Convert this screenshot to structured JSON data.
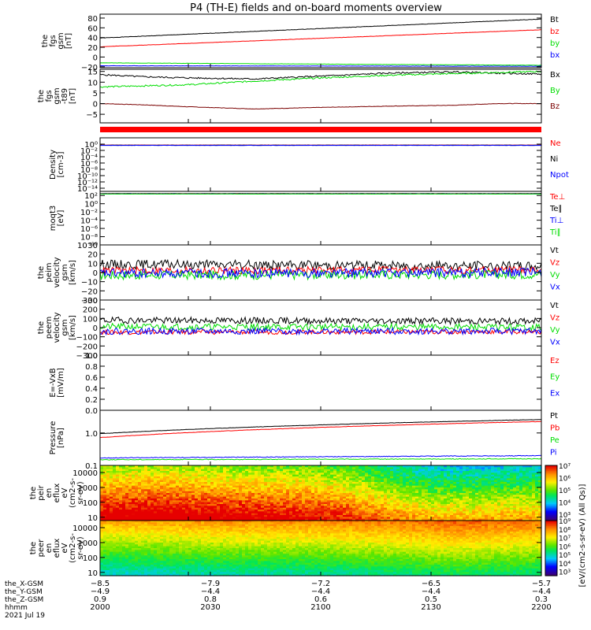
{
  "title": "P4 (TH-E) fields and on-board moments overview",
  "colors": {
    "black": "#000000",
    "red": "#ff0000",
    "green": "#00dd00",
    "blue": "#0000ff"
  },
  "chart_data": [
    {
      "type": "line",
      "ylabel_lines": [
        "the",
        "fgs",
        "gsm",
        "[nT]"
      ],
      "ylim": [
        -22,
        88
      ],
      "yticks": [
        {
          "v": 80,
          "label": "80"
        },
        {
          "v": 60,
          "label": "60"
        },
        {
          "v": 40,
          "label": "40"
        },
        {
          "v": 20,
          "label": "20"
        },
        {
          "v": 0,
          "label": "0"
        },
        {
          "v": -20,
          "label": "−20"
        }
      ],
      "series": [
        {
          "name": "Bt",
          "color": "#000000",
          "start": 39,
          "end": 78,
          "noise": 0.4,
          "seed": 1
        },
        {
          "name": "bz",
          "color": "#ff0000",
          "start": 21,
          "end": 56,
          "noise": 0.3,
          "seed": 2
        },
        {
          "name": "by",
          "color": "#00dd00",
          "start": -12,
          "end": -17,
          "noise": 0.3,
          "seed": 3
        },
        {
          "name": "bx",
          "color": "#0000ff",
          "start": -18,
          "end": -19,
          "noise": 0.3,
          "seed": 4
        }
      ]
    },
    {
      "type": "line",
      "ylabel_lines": [
        "the",
        "fgs",
        "gsm",
        "-t89",
        "[nT]"
      ],
      "ylim": [
        -9,
        16
      ],
      "yticks": [
        {
          "v": 15,
          "label": "15"
        },
        {
          "v": 10,
          "label": "10"
        },
        {
          "v": 5,
          "label": "5"
        },
        {
          "v": 0,
          "label": "0"
        },
        {
          "v": -5,
          "label": "−5"
        }
      ],
      "series": [
        {
          "name": "Bx",
          "color": "#000000",
          "points": [
            [
              0,
              13.5
            ],
            [
              0.1,
              12.5
            ],
            [
              0.2,
              12
            ],
            [
              0.35,
              11.5
            ],
            [
              0.5,
              12.8
            ],
            [
              0.65,
              14.2
            ],
            [
              0.8,
              14.8
            ],
            [
              0.9,
              14.2
            ],
            [
              1,
              13.8
            ]
          ],
          "noise": 0.35,
          "seed": 5
        },
        {
          "name": "By",
          "color": "#00dd00",
          "points": [
            [
              0,
              7.8
            ],
            [
              0.1,
              8.3
            ],
            [
              0.2,
              8.8
            ],
            [
              0.35,
              10.5
            ],
            [
              0.5,
              12
            ],
            [
              0.65,
              13.2
            ],
            [
              0.8,
              14
            ],
            [
              0.9,
              14.5
            ],
            [
              1,
              15
            ]
          ],
          "noise": 0.35,
          "seed": 6
        },
        {
          "name": "Bz",
          "color": "#7a0000",
          "points": [
            [
              0,
              0
            ],
            [
              0.1,
              -0.6
            ],
            [
              0.2,
              -1.5
            ],
            [
              0.35,
              -2.5
            ],
            [
              0.5,
              -1.8
            ],
            [
              0.65,
              -1.2
            ],
            [
              0.8,
              -0.8
            ],
            [
              0.9,
              0
            ],
            [
              1,
              0
            ]
          ],
          "noise": 0.1,
          "seed": 7
        }
      ]
    },
    {
      "type": "line",
      "ylabel_lines": [
        "Density",
        "[cm-3]"
      ],
      "log": true,
      "ylim": [
        1e-15,
        100.0
      ],
      "yticks": [
        {
          "v": 1.0,
          "label": "10⁰"
        },
        {
          "v": 0.01,
          "label": "10⁻²"
        },
        {
          "v": 0.0001,
          "label": "10⁻⁴"
        },
        {
          "v": 1e-06,
          "label": "10⁻⁶"
        },
        {
          "v": 1e-08,
          "label": "10⁻⁸"
        },
        {
          "v": 1e-10,
          "label": "10⁻¹⁰"
        },
        {
          "v": 1e-12,
          "label": "10⁻¹²"
        },
        {
          "v": 1e-14,
          "label": "10⁻¹⁴"
        }
      ],
      "series": [
        {
          "name": "Ne",
          "color": "#ff0000",
          "start": 0.5,
          "end": 0.5,
          "noise": 0.05,
          "seed": 8
        },
        {
          "name": "Ni",
          "color": "#000000",
          "start": 0.45,
          "end": 0.45,
          "noise": 0.05,
          "seed": 9
        },
        {
          "name": "Npot",
          "color": "#0000ff",
          "start": 0.4,
          "end": 0.4,
          "noise": 0.05,
          "seed": 10
        }
      ]
    },
    {
      "type": "line",
      "ylabel_lines": [
        "moqt3",
        "[eV]"
      ],
      "log": true,
      "ylim": [
        1e-10,
        1000.0
      ],
      "yticks": [
        {
          "v": 100.0,
          "label": "10²"
        },
        {
          "v": 1.0,
          "label": "10⁰"
        },
        {
          "v": 0.01,
          "label": "10⁻²"
        },
        {
          "v": 0.0001,
          "label": "10⁻⁴"
        },
        {
          "v": 1e-06,
          "label": "10⁻⁶"
        },
        {
          "v": 1e-08,
          "label": "10⁻⁸"
        },
        {
          "v": 1e-10,
          "label": "10⁻¹⁰"
        }
      ],
      "series": [
        {
          "name": "Te⊥",
          "color": "#ff0000",
          "start": 300,
          "end": 300,
          "noise": 0.05,
          "seed": 11
        },
        {
          "name": "Te∥",
          "color": "#000000",
          "start": 280,
          "end": 280,
          "noise": 0.05,
          "seed": 12
        },
        {
          "name": "Ti⊥",
          "color": "#0000ff",
          "start": 250,
          "end": 250,
          "noise": 0.05,
          "seed": 13
        },
        {
          "name": "Ti∥",
          "color": "#00dd00",
          "start": 230,
          "end": 230,
          "noise": 0.05,
          "seed": 14
        }
      ]
    },
    {
      "type": "line",
      "ylabel_lines": [
        "the",
        "peim",
        "velocity",
        "gsm",
        "[km/s]"
      ],
      "ylim": [
        -30,
        30
      ],
      "yticks": [
        {
          "v": 30,
          "label": "30"
        },
        {
          "v": 20,
          "label": "20"
        },
        {
          "v": 10,
          "label": "10"
        },
        {
          "v": 0,
          "label": "0"
        },
        {
          "v": -10,
          "label": "−10"
        },
        {
          "v": -20,
          "label": "−20"
        },
        {
          "v": -30,
          "label": "−30"
        }
      ],
      "series": [
        {
          "name": "Vt",
          "color": "#000000",
          "start": 9,
          "end": 7,
          "noise": 5,
          "seed": 15
        },
        {
          "name": "Vz",
          "color": "#ff0000",
          "start": 2,
          "end": 3,
          "noise": 4,
          "seed": 16
        },
        {
          "name": "Vy",
          "color": "#00dd00",
          "start": -3,
          "end": -2,
          "noise": 5,
          "seed": 17
        },
        {
          "name": "Vx",
          "color": "#0000ff",
          "start": -1,
          "end": 0,
          "noise": 5,
          "seed": 18
        }
      ]
    },
    {
      "type": "line",
      "ylabel_lines": [
        "the",
        "peem",
        "velocity",
        "gsm",
        "[km/s]"
      ],
      "ylim": [
        -300,
        300
      ],
      "yticks": [
        {
          "v": 300,
          "label": "300"
        },
        {
          "v": 200,
          "label": "200"
        },
        {
          "v": 100,
          "label": "100"
        },
        {
          "v": 0,
          "label": "0"
        },
        {
          "v": -100,
          "label": "−100"
        },
        {
          "v": -200,
          "label": "−200"
        },
        {
          "v": -300,
          "label": "−300"
        }
      ],
      "series": [
        {
          "name": "Vt",
          "color": "#000000",
          "start": 80,
          "end": 70,
          "noise": 35,
          "seed": 19
        },
        {
          "name": "Vz",
          "color": "#ff0000",
          "start": -50,
          "end": -45,
          "noise": 25,
          "seed": 20
        },
        {
          "name": "Vy",
          "color": "#00dd00",
          "start": 10,
          "end": 5,
          "noise": 35,
          "seed": 21
        },
        {
          "name": "Vx",
          "color": "#0000ff",
          "start": -40,
          "end": -40,
          "noise": 35,
          "seed": 22
        }
      ]
    },
    {
      "type": "line",
      "ylabel_lines": [
        "E=-VxB",
        "[mV/m]"
      ],
      "ylim": [
        0,
        1
      ],
      "yticks": [
        {
          "v": 1.0,
          "label": "1.0"
        },
        {
          "v": 0.8,
          "label": "0.8"
        },
        {
          "v": 0.6,
          "label": "0.6"
        },
        {
          "v": 0.4,
          "label": "0.4"
        },
        {
          "v": 0.2,
          "label": "0.2"
        },
        {
          "v": 0.0,
          "label": "0.0"
        }
      ],
      "series": [
        {
          "name": "Ez",
          "color": "#ff0000",
          "values": []
        },
        {
          "name": "Ey",
          "color": "#00dd00",
          "values": []
        },
        {
          "name": "Ex",
          "color": "#0000ff",
          "values": []
        }
      ]
    },
    {
      "type": "line",
      "ylabel_lines": [
        "Pressure",
        "[nPa]"
      ],
      "log": true,
      "ylim": [
        0.1,
        5
      ],
      "yticks": [
        {
          "v": 1.0,
          "label": "1.0"
        },
        {
          "v": 0.1,
          "label": "0.1"
        }
      ],
      "series": [
        {
          "name": "Pt",
          "color": "#000000",
          "start": 0.95,
          "end": 2.6,
          "noise": 0.01,
          "seed": 23
        },
        {
          "name": "Pb",
          "color": "#ff0000",
          "start": 0.72,
          "end": 2.25,
          "noise": 0.01,
          "seed": 24
        },
        {
          "name": "Pe",
          "color": "#00dd00",
          "start": 0.15,
          "end": 0.16,
          "noise": 0.02,
          "seed": 25
        },
        {
          "name": "Pi",
          "color": "#0000ff",
          "start": 0.17,
          "end": 0.2,
          "noise": 0.02,
          "seed": 26
        }
      ]
    },
    {
      "type": "heatmap",
      "ylabel_lines": [
        "the",
        "peir",
        "en",
        "eflux",
        "eV",
        "(cm2-s-",
        "sr-eV)"
      ],
      "log": true,
      "ylim": [
        6,
        30000
      ],
      "yticks": [
        {
          "v": 10000,
          "label": "10000"
        },
        {
          "v": 1000,
          "label": "1000"
        },
        {
          "v": 100,
          "label": "100"
        },
        {
          "v": 10,
          "label": "10"
        }
      ],
      "colorbar_ticks": [
        {
          "p": 7,
          "label": "10⁷"
        },
        {
          "p": 6,
          "label": "10⁶"
        },
        {
          "p": 5,
          "label": "10⁵"
        },
        {
          "p": 4,
          "label": "10⁴"
        },
        {
          "p": 3,
          "label": "10³"
        }
      ],
      "clim_log": [
        2.5,
        7
      ],
      "seed": 31,
      "profile": [
        [
          0,
          6.1
        ],
        [
          0.15,
          6.2
        ],
        [
          0.3,
          6.0
        ],
        [
          0.45,
          5.9
        ],
        [
          0.55,
          5.7
        ],
        [
          0.65,
          5.2
        ],
        [
          0.75,
          4.8
        ],
        [
          0.85,
          4.8
        ],
        [
          1,
          4.9
        ]
      ]
    },
    {
      "type": "heatmap",
      "ylabel_lines": [
        "the",
        "peer",
        "en",
        "eflux",
        "eV",
        "(cm2-s-",
        "sr-eV)"
      ],
      "log": true,
      "ylim": [
        6,
        30000
      ],
      "yticks": [
        {
          "v": 10000,
          "label": "10000"
        },
        {
          "v": 1000,
          "label": "1000"
        },
        {
          "v": 100,
          "label": "100"
        },
        {
          "v": 10,
          "label": "10"
        }
      ],
      "colorbar_ticks": [
        {
          "p": 9,
          "label": "10⁹"
        },
        {
          "p": 8,
          "label": "10⁸"
        },
        {
          "p": 7,
          "label": "10⁷"
        },
        {
          "p": 6,
          "label": "10⁶"
        },
        {
          "p": 5,
          "label": "10⁵"
        },
        {
          "p": 4,
          "label": "10⁴"
        },
        {
          "p": 3,
          "label": "10³"
        }
      ],
      "clim_log": [
        2.5,
        9
      ],
      "seed": 37,
      "profile": [
        [
          0,
          7.7
        ],
        [
          0.15,
          7.8
        ],
        [
          0.25,
          7.9
        ],
        [
          0.5,
          8.0
        ],
        [
          0.7,
          8.2
        ],
        [
          0.8,
          8.4
        ],
        [
          0.9,
          8.3
        ],
        [
          1,
          8.2
        ]
      ]
    }
  ],
  "time_axis": {
    "row_labels": [
      "the_X-GSM",
      "the_Y-GSM",
      "the_Z-GSM",
      "hhmm",
      "2021 Jul 19"
    ],
    "ticks": [
      {
        "t": 0,
        "values": [
          "−8.5",
          "−4.9",
          "0.9",
          "2000"
        ]
      },
      {
        "t": 0.2,
        "values": []
      },
      {
        "t": 0.25,
        "values": [
          "−7.9",
          "−4.4",
          "0.8",
          "2030"
        ]
      },
      {
        "t": 0.5,
        "values": [
          "−7.2",
          "−4.4",
          "0.6",
          "2100"
        ]
      },
      {
        "t": 0.75,
        "values": [
          "−6.5",
          "−4.4",
          "0.5",
          "2130"
        ]
      },
      {
        "t": 1,
        "values": [
          "−5.7",
          "−4.4",
          "0.3",
          "2200"
        ]
      }
    ]
  },
  "colorbar_unit_label": "[eV/(cm2-s-sr-eV) (All Qs)]"
}
